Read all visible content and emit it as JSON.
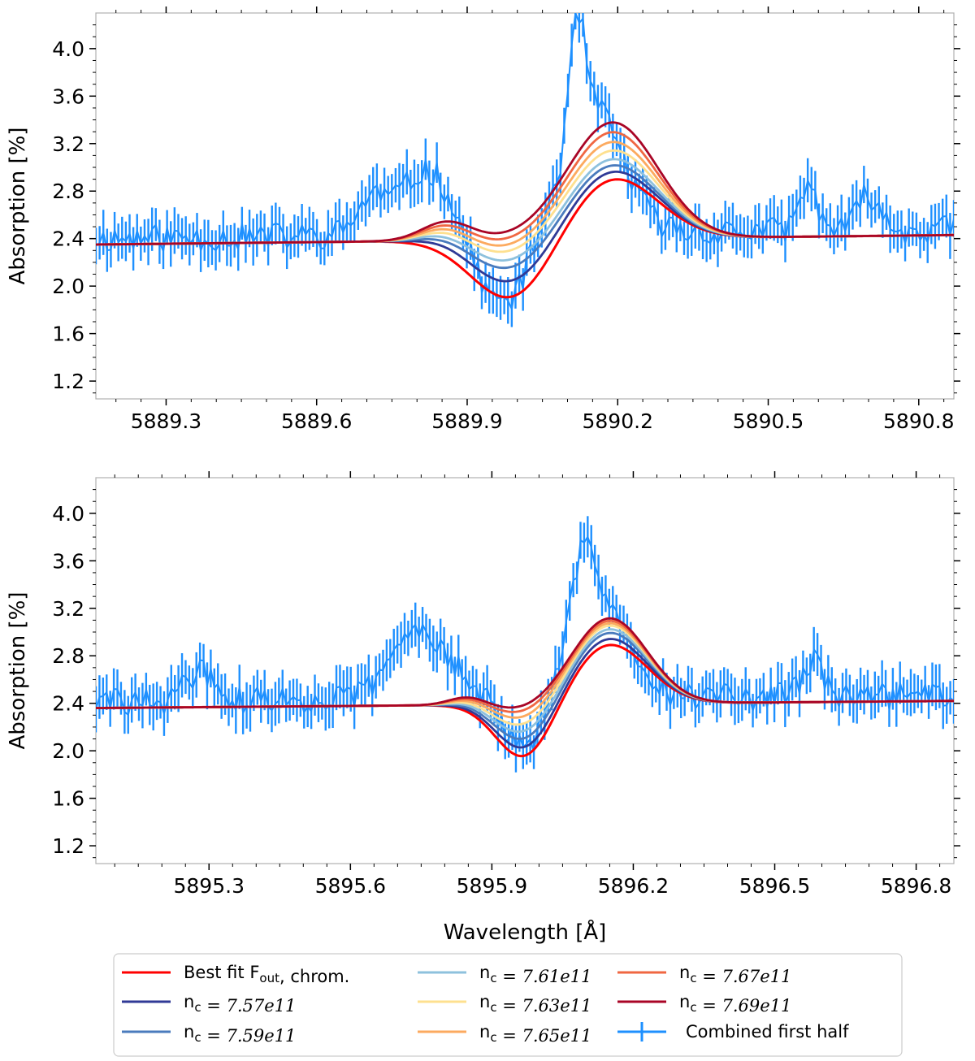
{
  "chart_data": [
    {
      "type": "line",
      "panel": "top",
      "xlabel": "",
      "ylabel": "Absorption [%]",
      "xlim": [
        5889.16,
        5890.87
      ],
      "ylim": [
        1.05,
        4.3
      ],
      "xticks": [
        5889.3,
        5889.6,
        5889.9,
        5890.2,
        5890.5,
        5890.8
      ],
      "xtick_labels": [
        "5889.3",
        "5889.6",
        "5889.9",
        "5890.2",
        "5890.5",
        "5890.8"
      ],
      "yticks": [
        1.2,
        1.6,
        2.0,
        2.4,
        2.8,
        3.2,
        3.6,
        4.0
      ],
      "ytick_labels": [
        "1.2",
        "1.6",
        "2.0",
        "2.4",
        "2.8",
        "3.2",
        "3.6",
        "4.0"
      ],
      "model": {
        "baseline_start": 2.35,
        "baseline_end": 2.43,
        "center": 5890.05,
        "bump_x": 5889.86,
        "trough_x": 5889.99,
        "peak_x": 5890.19,
        "trough_width": 0.08,
        "peak_width": 0.09,
        "bump_width": 0.05,
        "trough_depths": [
          0.52,
          0.39,
          0.28,
          0.22,
          0.15,
          0.1,
          0.05,
          0.0
        ],
        "peak_heights": [
          0.52,
          0.58,
          0.63,
          0.68,
          0.75,
          0.82,
          0.9,
          0.98
        ],
        "bump_heights": [
          0.0,
          0.04,
          0.06,
          0.08,
          0.1,
          0.12,
          0.14,
          0.16
        ]
      },
      "observed": {
        "x_start": 5889.16,
        "x_end": 5890.87,
        "n_points": 230,
        "noise": 0.12,
        "error_bar": 0.16,
        "features": [
          {
            "x": 5889.71,
            "amp": 0.3,
            "width": 0.03
          },
          {
            "x": 5889.82,
            "amp": 0.55,
            "width": 0.05
          },
          {
            "x": 5889.97,
            "amp": -0.6,
            "width": 0.05
          },
          {
            "x": 5890.15,
            "amp": 1.05,
            "width": 0.06
          },
          {
            "x": 5890.12,
            "amp": 0.9,
            "width": 0.015
          },
          {
            "x": 5890.58,
            "amp": 0.35,
            "width": 0.02
          },
          {
            "x": 5890.7,
            "amp": 0.3,
            "width": 0.02
          }
        ]
      }
    },
    {
      "type": "line",
      "panel": "bottom",
      "xlabel": "Wavelength [Å]",
      "ylabel": "Absorption [%]",
      "xlim": [
        5895.06,
        5896.88
      ],
      "ylim": [
        1.05,
        4.3
      ],
      "xticks": [
        5895.3,
        5895.6,
        5895.9,
        5896.2,
        5896.5,
        5896.8
      ],
      "xtick_labels": [
        "5895.3",
        "5895.6",
        "5895.9",
        "5896.2",
        "5896.5",
        "5896.8"
      ],
      "yticks": [
        1.2,
        1.6,
        2.0,
        2.4,
        2.8,
        3.2,
        3.6,
        4.0
      ],
      "ytick_labels": [
        "1.2",
        "1.6",
        "2.0",
        "2.4",
        "2.8",
        "3.2",
        "3.6",
        "4.0"
      ],
      "model": {
        "baseline_start": 2.36,
        "baseline_end": 2.42,
        "center": 5896.0,
        "bump_x": 5895.85,
        "trough_x": 5895.97,
        "peak_x": 5896.15,
        "trough_width": 0.06,
        "peak_width": 0.08,
        "bump_width": 0.04,
        "trough_depths": [
          0.47,
          0.4,
          0.33,
          0.27,
          0.21,
          0.15,
          0.1,
          0.06
        ],
        "peak_heights": [
          0.5,
          0.55,
          0.6,
          0.63,
          0.66,
          0.68,
          0.7,
          0.72
        ],
        "bump_heights": [
          0.0,
          0.01,
          0.02,
          0.03,
          0.04,
          0.05,
          0.06,
          0.07
        ]
      },
      "observed": {
        "x_start": 5895.06,
        "x_end": 5896.88,
        "n_points": 240,
        "noise": 0.12,
        "error_bar": 0.16,
        "features": [
          {
            "x": 5895.28,
            "amp": 0.25,
            "width": 0.03
          },
          {
            "x": 5895.75,
            "amp": 0.6,
            "width": 0.06
          },
          {
            "x": 5895.97,
            "amp": -0.45,
            "width": 0.04
          },
          {
            "x": 5896.13,
            "amp": 0.9,
            "width": 0.06
          },
          {
            "x": 5896.09,
            "amp": 0.55,
            "width": 0.02
          },
          {
            "x": 5896.58,
            "amp": 0.3,
            "width": 0.02
          }
        ]
      }
    }
  ],
  "legend": {
    "items": [
      {
        "label_pre": "Best fit F",
        "sub": "out",
        "label_post": ", chrom.",
        "math": "",
        "color": "#ff0000",
        "kind": "line"
      },
      {
        "label_pre": "n",
        "sub": "c",
        "label_post": "",
        "math": " = 7.57e11",
        "color": "#303a96",
        "kind": "line"
      },
      {
        "label_pre": "n",
        "sub": "c",
        "label_post": "",
        "math": " = 7.59e11",
        "color": "#4a7bbd",
        "kind": "line"
      },
      {
        "label_pre": "n",
        "sub": "c",
        "label_post": "",
        "math": " = 7.61e11",
        "color": "#8ec1dd",
        "kind": "line"
      },
      {
        "label_pre": "n",
        "sub": "c",
        "label_post": "",
        "math": " = 7.63e11",
        "color": "#fee08f",
        "kind": "line"
      },
      {
        "label_pre": "n",
        "sub": "c",
        "label_post": "",
        "math": " = 7.65e11",
        "color": "#fcaa5f",
        "kind": "line"
      },
      {
        "label_pre": "n",
        "sub": "c",
        "label_post": "",
        "math": " = 7.67e11",
        "color": "#f06742",
        "kind": "line"
      },
      {
        "label_pre": "n",
        "sub": "c",
        "label_post": "",
        "math": " = 7.69e11",
        "color": "#a90526",
        "kind": "line"
      },
      {
        "label_pre": "Combined first half",
        "sub": "",
        "label_post": "",
        "math": "",
        "color": "#1e90ff",
        "kind": "errorbar"
      }
    ]
  },
  "colors": {
    "data": "#1e90ff",
    "best_fit": "#ff0000",
    "models": [
      "#ff0000",
      "#303a96",
      "#4a7bbd",
      "#8ec1dd",
      "#fee08f",
      "#fcaa5f",
      "#f06742",
      "#a90526"
    ]
  }
}
